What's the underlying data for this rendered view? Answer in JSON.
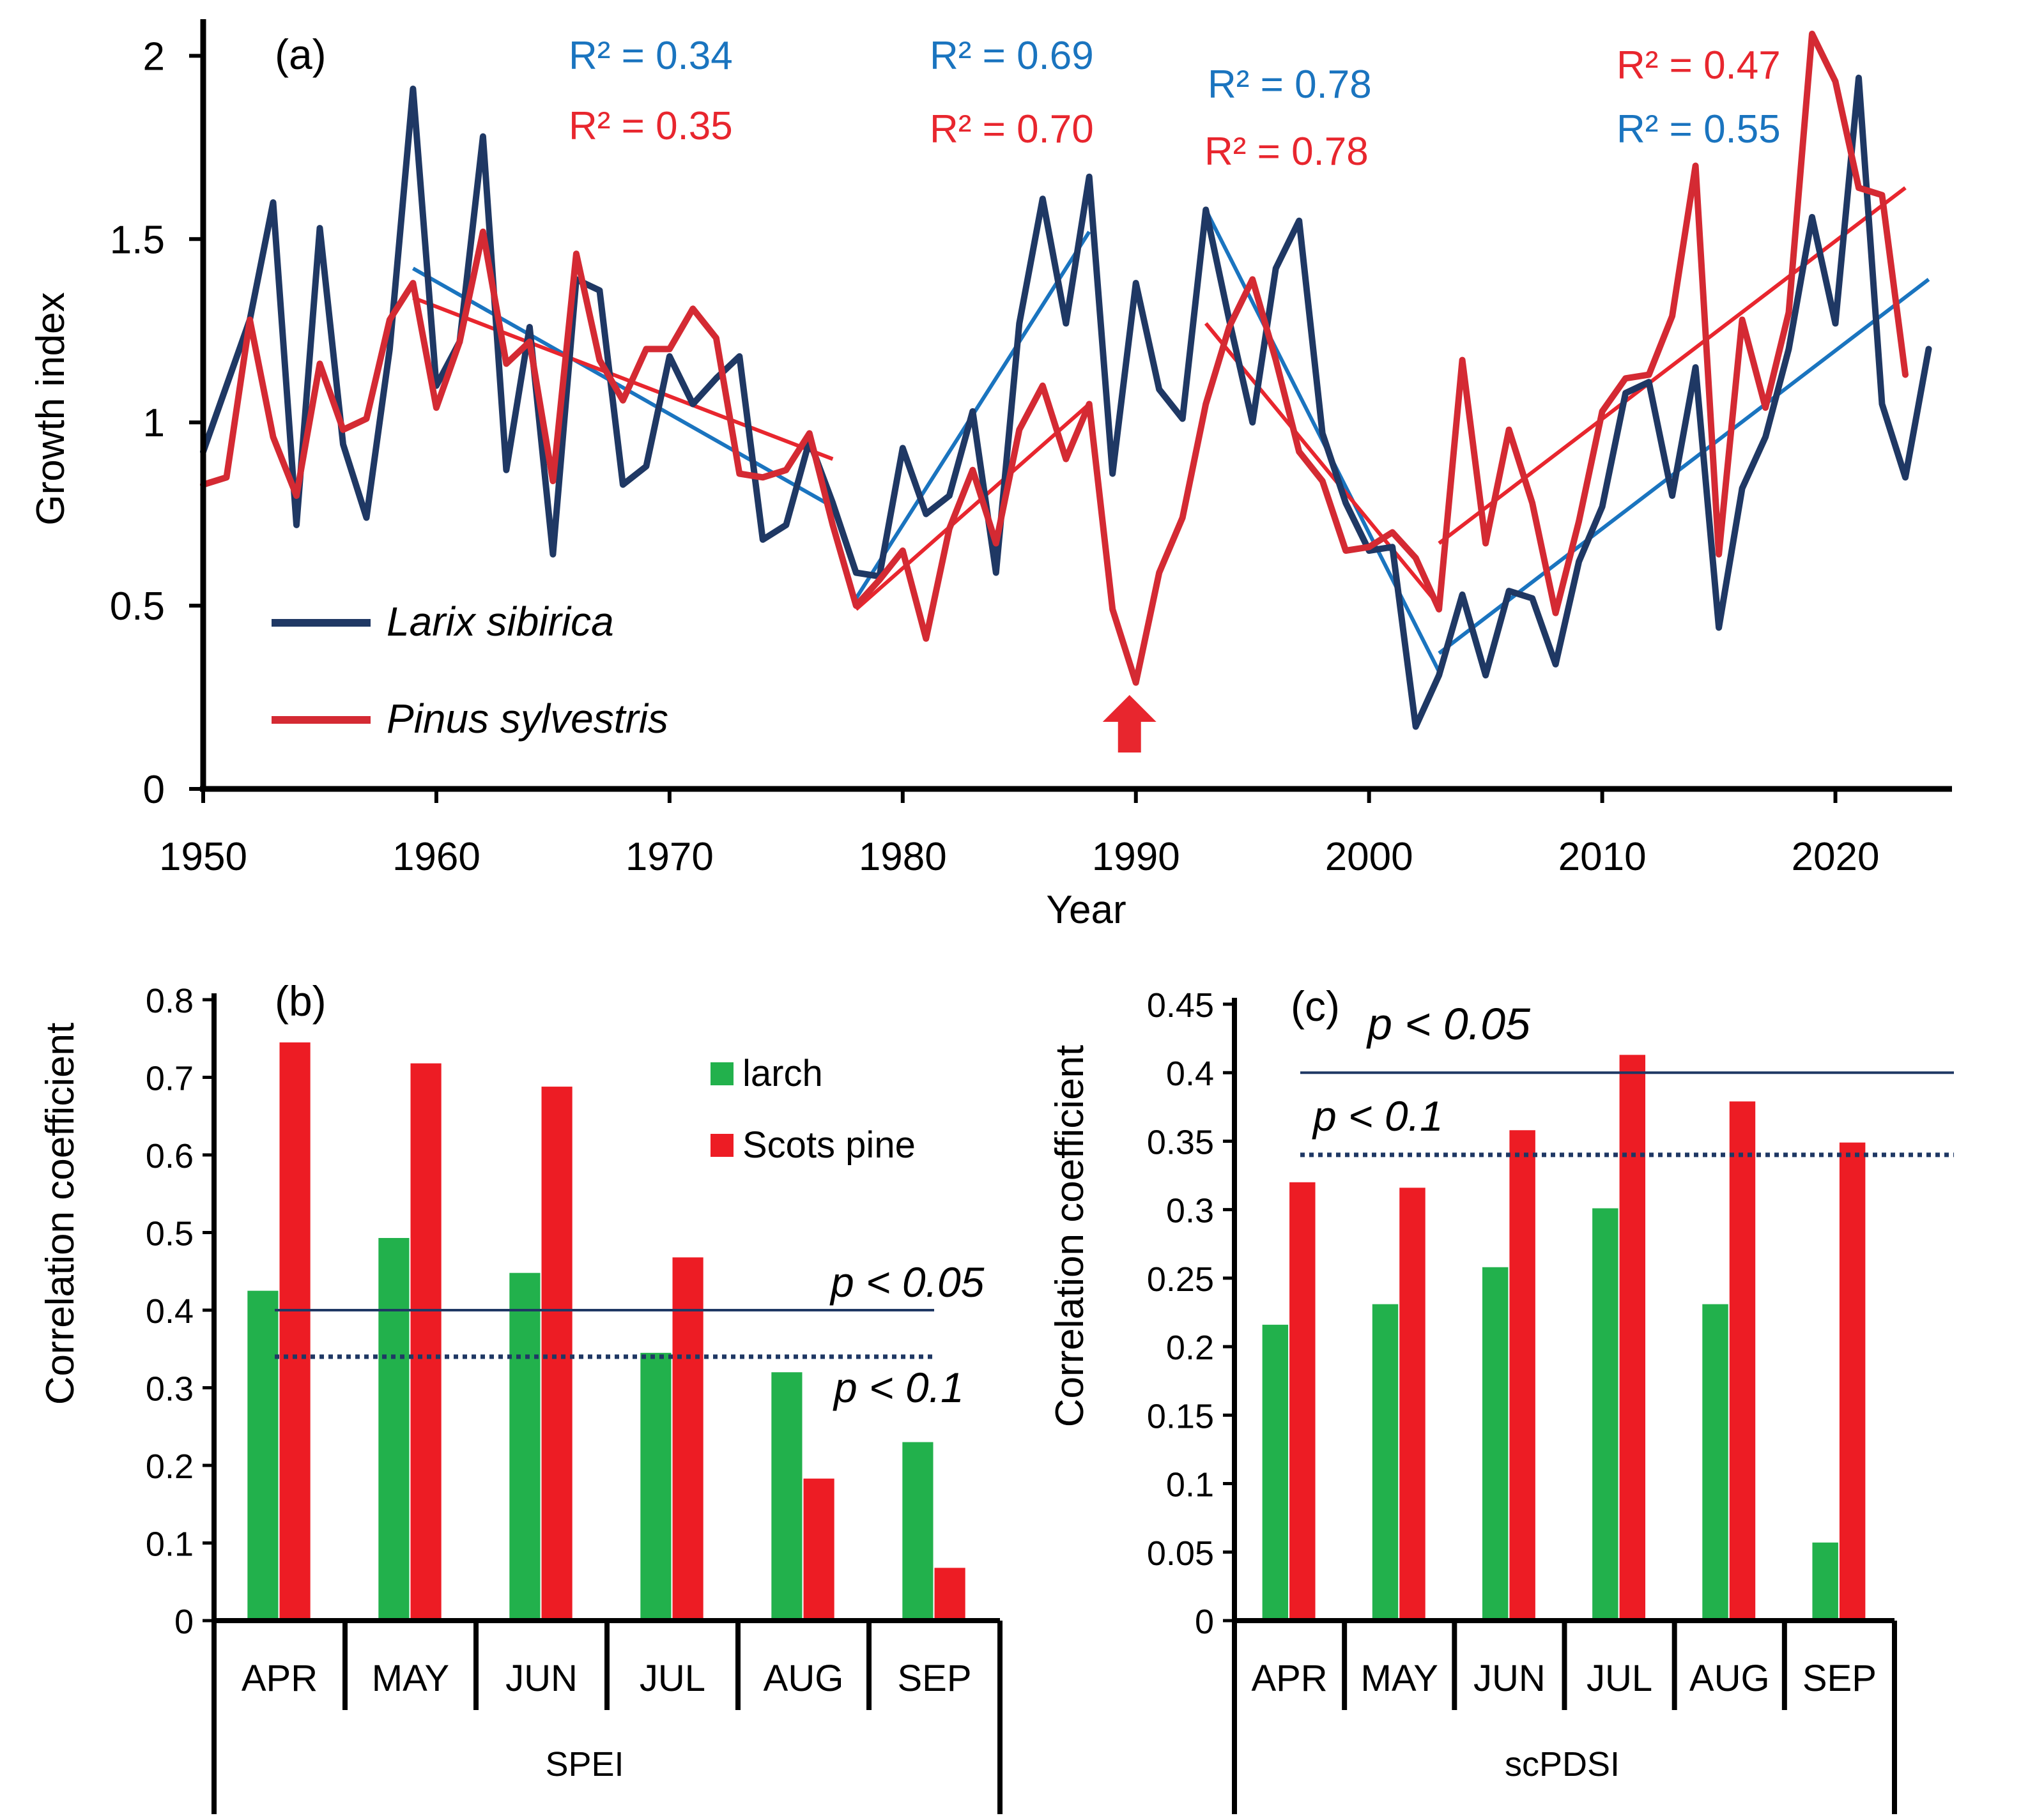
{
  "colors": {
    "larch_line": "#1f3864",
    "pine_line": "#d42a33",
    "trend_blue": "#1a74bf",
    "trend_red": "#e8262e",
    "bar_green": "#22b14c",
    "bar_red": "#ed1c24",
    "sig_line": "#1f3864",
    "arrow": "#e8262e"
  },
  "chart_data": [
    {
      "panel": "(a)",
      "type": "line",
      "xlabel": "Year",
      "ylabel": "Growth index",
      "xlim": [
        1950,
        2025
      ],
      "ylim": [
        0,
        2.1
      ],
      "xticks": [
        "1950",
        "1960",
        "1970",
        "1980",
        "1990",
        "2000",
        "2010",
        "2020"
      ],
      "yticks": [
        "0",
        "0.5",
        "1",
        "1.5",
        "2"
      ],
      "legend": [
        {
          "name": "Larix sibirica",
          "series": "larix"
        },
        {
          "name": "Pinus sylvestris",
          "series": "pinus"
        }
      ],
      "series": [
        {
          "key": "larix",
          "name": "Larix sibirica",
          "x": [
            1950,
            1951,
            1952,
            1953,
            1954,
            1955,
            1956,
            1957,
            1958,
            1959,
            1960,
            1961,
            1962,
            1963,
            1964,
            1965,
            1966,
            1967,
            1968,
            1969,
            1970,
            1971,
            1972,
            1973,
            1974,
            1975,
            1976,
            1977,
            1978,
            1979,
            1980,
            1981,
            1982,
            1983,
            1984,
            1985,
            1986,
            1987,
            1988,
            1989,
            1990,
            1991,
            1992,
            1993,
            1994,
            1995,
            1996,
            1997,
            1998,
            1999,
            2000,
            2001,
            2002,
            2003,
            2004,
            2005,
            2006,
            2007,
            2008,
            2009,
            2010,
            2011,
            2012,
            2013,
            2014,
            2015,
            2016,
            2017,
            2018,
            2019,
            2020,
            2021,
            2022,
            2023,
            2024
          ],
          "y": [
            0.92,
            1.1,
            1.28,
            1.6,
            0.72,
            1.53,
            0.94,
            0.74,
            1.2,
            1.91,
            1.1,
            1.22,
            1.78,
            0.87,
            1.26,
            0.64,
            1.39,
            1.36,
            0.83,
            0.88,
            1.18,
            1.05,
            1.12,
            1.18,
            0.68,
            0.72,
            0.95,
            0.78,
            0.59,
            0.58,
            0.93,
            0.75,
            0.8,
            1.03,
            0.59,
            1.27,
            1.61,
            1.27,
            1.67,
            0.86,
            1.38,
            1.09,
            1.01,
            1.58,
            1.28,
            1.0,
            1.42,
            1.55,
            0.97,
            0.78,
            0.65,
            0.66,
            0.17,
            0.31,
            0.53,
            0.31,
            0.54,
            0.52,
            0.34,
            0.62,
            0.77,
            1.08,
            1.11,
            0.8,
            1.15,
            0.44,
            0.82,
            0.96,
            1.2,
            1.56,
            1.27,
            1.94,
            1.05,
            0.85,
            1.2
          ]
        },
        {
          "key": "pinus",
          "name": "Pinus sylvestris",
          "x": [
            1950,
            1951,
            1952,
            1953,
            1954,
            1955,
            1956,
            1957,
            1958,
            1959,
            1960,
            1961,
            1962,
            1963,
            1964,
            1965,
            1966,
            1967,
            1968,
            1969,
            1970,
            1971,
            1972,
            1973,
            1974,
            1975,
            1976,
            1977,
            1978,
            1979,
            1980,
            1981,
            1982,
            1983,
            1984,
            1985,
            1986,
            1987,
            1988,
            1989,
            1990,
            1991,
            1992,
            1993,
            1994,
            1995,
            1996,
            1997,
            1998,
            1999,
            2000,
            2001,
            2002,
            2003,
            2004,
            2005,
            2006,
            2007,
            2008,
            2009,
            2010,
            2011,
            2012,
            2013,
            2014,
            2015,
            2016,
            2017,
            2018,
            2019,
            2020,
            2021,
            2022,
            2023
          ],
          "y": [
            0.83,
            0.85,
            1.28,
            0.96,
            0.8,
            1.16,
            0.98,
            1.01,
            1.28,
            1.38,
            1.04,
            1.22,
            1.52,
            1.16,
            1.22,
            0.84,
            1.46,
            1.17,
            1.06,
            1.2,
            1.2,
            1.31,
            1.23,
            0.86,
            0.85,
            0.87,
            0.97,
            0.72,
            0.5,
            0.57,
            0.65,
            0.41,
            0.71,
            0.87,
            0.67,
            0.98,
            1.1,
            0.9,
            1.05,
            0.49,
            0.29,
            0.59,
            0.74,
            1.05,
            1.26,
            1.39,
            1.17,
            0.92,
            0.84,
            0.65,
            0.66,
            0.7,
            0.63,
            0.49,
            1.17,
            0.67,
            0.98,
            0.78,
            0.48,
            0.73,
            1.03,
            1.12,
            1.13,
            1.29,
            1.7,
            0.64,
            1.28,
            1.04,
            1.3,
            2.06,
            1.93,
            1.64,
            1.62,
            1.13
          ]
        }
      ],
      "trendlines": [
        {
          "series": "larix",
          "x": [
            1959,
            1977
          ],
          "y": [
            1.42,
            0.77
          ]
        },
        {
          "series": "pinus",
          "x": [
            1959,
            1977
          ],
          "y": [
            1.34,
            0.9
          ]
        },
        {
          "series": "larix",
          "x": [
            1978,
            1988
          ],
          "y": [
            0.52,
            1.52
          ]
        },
        {
          "series": "pinus",
          "x": [
            1978,
            1988
          ],
          "y": [
            0.49,
            1.05
          ]
        },
        {
          "series": "larix",
          "x": [
            1993,
            2003
          ],
          "y": [
            1.58,
            0.32
          ]
        },
        {
          "series": "pinus",
          "x": [
            1993,
            2003
          ],
          "y": [
            1.27,
            0.5
          ]
        },
        {
          "series": "larix",
          "x": [
            2003,
            2024
          ],
          "y": [
            0.37,
            1.39
          ]
        },
        {
          "series": "pinus",
          "x": [
            2003,
            2023
          ],
          "y": [
            0.67,
            1.64
          ]
        }
      ],
      "annotations": [
        {
          "text": "R² = 0.34",
          "color": "blue"
        },
        {
          "text": "R² = 0.35",
          "color": "red"
        },
        {
          "text": "R² = 0.69",
          "color": "blue"
        },
        {
          "text": "R² = 0.70",
          "color": "red"
        },
        {
          "text": "R² = 0.78",
          "color": "blue"
        },
        {
          "text": "R² = 0.78",
          "color": "red"
        },
        {
          "text": "R² = 0.47",
          "color": "red"
        },
        {
          "text": "R² = 0.55",
          "color": "blue"
        }
      ],
      "arrow_year": 1990
    },
    {
      "panel": "(b)",
      "type": "bar",
      "ylabel": "Correlation coefficient",
      "xlabel": "SPEI",
      "ylim": [
        0,
        0.8
      ],
      "yticks": [
        "0",
        "0.1",
        "0.2",
        "0.3",
        "0.4",
        "0.5",
        "0.6",
        "0.7",
        "0.8"
      ],
      "categories": [
        "APR",
        "MAY",
        "JUN",
        "JUL",
        "AUG",
        "SEP"
      ],
      "series": [
        {
          "name": "larch",
          "values": [
            0.425,
            0.493,
            0.448,
            0.345,
            0.32,
            0.23
          ]
        },
        {
          "name": "Scots pine",
          "values": [
            0.745,
            0.718,
            0.688,
            0.468,
            0.183,
            0.068
          ]
        }
      ],
      "thresholds": [
        {
          "label": "p < 0.05",
          "value": 0.4,
          "style": "solid"
        },
        {
          "label": "p < 0.1",
          "value": 0.34,
          "style": "dotted"
        }
      ]
    },
    {
      "panel": "(c)",
      "type": "bar",
      "ylabel": "Correlation coefficient",
      "xlabel": "scPDSI",
      "ylim": [
        0,
        0.45
      ],
      "yticks": [
        "0",
        "0.05",
        "0.1",
        "0.15",
        "0.2",
        "0.25",
        "0.3",
        "0.35",
        "0.4",
        "0.45"
      ],
      "categories": [
        "APR",
        "MAY",
        "JUN",
        "JUL",
        "AUG",
        "SEP"
      ],
      "series": [
        {
          "name": "larch",
          "values": [
            0.216,
            0.231,
            0.258,
            0.301,
            0.231,
            0.057
          ]
        },
        {
          "name": "Scots pine",
          "values": [
            0.32,
            0.316,
            0.358,
            0.413,
            0.379,
            0.349
          ]
        }
      ],
      "thresholds": [
        {
          "label": "p < 0.05",
          "value": 0.4,
          "style": "solid"
        },
        {
          "label": "p < 0.1",
          "value": 0.34,
          "style": "dotted"
        }
      ]
    }
  ]
}
